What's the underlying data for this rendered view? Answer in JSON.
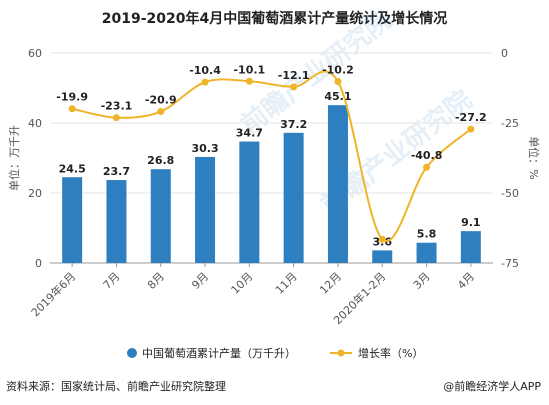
{
  "title": "2019-2020年4月中国葡萄酒累计产量统计及增长情况",
  "source": "资料来源：国家统计局、前瞻产业研究院整理",
  "brand": "@前瞻经济学人APP",
  "chart_data": {
    "type": "bar",
    "categories": [
      "2019年6月",
      "7月",
      "8月",
      "9月",
      "10月",
      "11月",
      "12月",
      "2020年1-2月",
      "3月",
      "4月"
    ],
    "series": [
      {
        "name": "中国葡萄酒累计产量（万千升）",
        "type": "bar",
        "axis": "left",
        "values": [
          24.5,
          23.7,
          26.8,
          30.3,
          34.7,
          37.2,
          45.1,
          3.6,
          5.8,
          9.1
        ],
        "labels": [
          "24.5",
          "23.7",
          "26.8",
          "30.3",
          "34.7",
          "37.2",
          "45.1",
          "3.6",
          "5.8",
          "9.1"
        ],
        "color": "#2e7fbf"
      },
      {
        "name": "增长率（%）",
        "type": "line",
        "axis": "right",
        "values": [
          -19.9,
          -23.1,
          -20.9,
          -10.4,
          -10.1,
          -12.1,
          -10.2,
          -66.5,
          -40.8,
          -27.2
        ],
        "labels": [
          "-19.9",
          "-23.1",
          "-20.9",
          "-10.4",
          "-10.1",
          "-12.1",
          "-10.2",
          "",
          "-40.8",
          "-27.2"
        ],
        "color": "#f0b429"
      }
    ],
    "ylabel_left": "单位：万千升",
    "ylabel_right": "单位：%",
    "ylim_left": [
      0,
      60
    ],
    "ylim_right": [
      -75,
      0
    ],
    "yticks_left": [
      "0",
      "20",
      "40",
      "60"
    ],
    "yticks_right": [
      "0",
      "-25",
      "-50",
      "-75"
    ],
    "legend_position": "bottom"
  }
}
